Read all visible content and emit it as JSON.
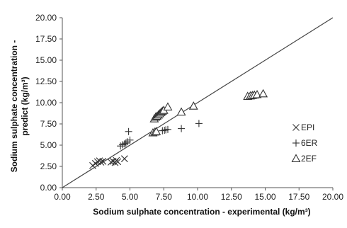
{
  "chart_data": {
    "type": "scatter",
    "xlabel": "Sodium sulphate concentration - experimental  (kg/m³)",
    "ylabel_lines": [
      "Sodium sulphate concentration -",
      "predict (kg/m³)"
    ],
    "xlim": [
      0,
      20
    ],
    "ylim": [
      0,
      20
    ],
    "x_ticks": [
      "0.00",
      "2.50",
      "5.00",
      "7.50",
      "10.00",
      "12.50",
      "15.00",
      "17.50",
      "20.00"
    ],
    "y_ticks": [
      "0.00",
      "2.50",
      "5.00",
      "7.50",
      "10.00",
      "12.50",
      "15.00",
      "17.50",
      "20.00"
    ],
    "grid": false,
    "reference_line": {
      "type": "y=x",
      "from": [
        0,
        0
      ],
      "to": [
        20,
        20
      ]
    },
    "legend_position": "right",
    "series": [
      {
        "name": "EPI",
        "marker": "x",
        "points": [
          [
            2.25,
            2.6
          ],
          [
            2.45,
            2.85
          ],
          [
            2.6,
            3.05
          ],
          [
            2.75,
            3.15
          ],
          [
            2.85,
            3.0
          ],
          [
            3.0,
            3.1
          ],
          [
            3.6,
            3.0
          ],
          [
            3.75,
            3.1
          ],
          [
            3.9,
            2.95
          ],
          [
            4.0,
            3.2
          ],
          [
            4.1,
            3.05
          ],
          [
            4.6,
            3.4
          ]
        ]
      },
      {
        "name": "6ER",
        "marker": "+",
        "points": [
          [
            4.3,
            4.9
          ],
          [
            4.45,
            5.05
          ],
          [
            4.6,
            5.15
          ],
          [
            4.7,
            5.25
          ],
          [
            4.8,
            5.4
          ],
          [
            5.0,
            5.6
          ],
          [
            4.9,
            6.6
          ],
          [
            7.4,
            6.7
          ],
          [
            7.55,
            6.75
          ],
          [
            7.65,
            6.8
          ],
          [
            7.8,
            6.85
          ],
          [
            8.8,
            6.95
          ],
          [
            10.1,
            7.55
          ]
        ]
      },
      {
        "name": "2EF",
        "marker": "triangle",
        "points": [
          [
            6.7,
            6.45
          ],
          [
            6.85,
            6.55
          ],
          [
            6.95,
            6.6
          ],
          [
            6.8,
            8.1
          ],
          [
            6.9,
            8.3
          ],
          [
            7.0,
            8.4
          ],
          [
            7.1,
            8.55
          ],
          [
            7.2,
            8.7
          ],
          [
            7.3,
            8.85
          ],
          [
            7.4,
            9.0
          ],
          [
            7.5,
            9.1
          ],
          [
            7.8,
            9.5
          ],
          [
            8.8,
            8.9
          ],
          [
            9.7,
            9.6
          ],
          [
            13.7,
            10.75
          ],
          [
            13.9,
            10.8
          ],
          [
            14.05,
            10.85
          ],
          [
            14.2,
            10.9
          ],
          [
            14.4,
            10.95
          ],
          [
            14.85,
            11.05
          ]
        ]
      }
    ]
  }
}
